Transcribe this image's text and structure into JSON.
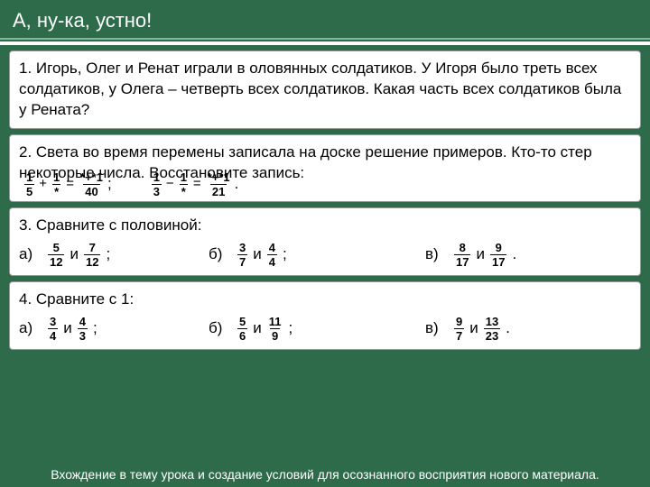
{
  "colors": {
    "background": "#2d6b4a",
    "card_bg": "#ffffff",
    "text": "#000000",
    "header_text": "#ffffff",
    "rule_light": "#7fb89a"
  },
  "header": "А, ну-ка, устно!",
  "task1": {
    "text": "1. Игорь, Олег и Ренат играли в оловянных солдатиков. У Игоря было треть всех солдатиков, у Олега – четверть всех солдатиков. Какая часть всех солдатиков была у Рената?"
  },
  "task2": {
    "text": "2. Света во время перемены записала на доске решение примеров. Кто-то стер некоторые числа. Восстановите запись:",
    "eq1": {
      "f1": {
        "n": "1",
        "d": "5"
      },
      "op1": "+",
      "f2": {
        "n": "1",
        "d": "*"
      },
      "op2": "=",
      "f3": {
        "n": "*+*1",
        "d": "40"
      },
      "tail": ";"
    },
    "eq2": {
      "f1": {
        "n": "1",
        "d": "3"
      },
      "op1": "−",
      "f2": {
        "n": "1",
        "d": "*"
      },
      "op2": "=",
      "f3": {
        "n": "*+*1",
        "d": "21"
      },
      "tail": "."
    }
  },
  "task3": {
    "text": "3. Сравните с половиной:",
    "a": {
      "label": "а)",
      "f1": {
        "n": "5",
        "d": "12"
      },
      "mid": "и",
      "f2": {
        "n": "7",
        "d": "12"
      },
      "tail": ";"
    },
    "b": {
      "label": "б)",
      "f1": {
        "n": "3",
        "d": "7"
      },
      "mid": "и",
      "f2": {
        "n": "4",
        "d": "4"
      },
      "tail": ";"
    },
    "c": {
      "label": "в)",
      "f1": {
        "n": "8",
        "d": "17"
      },
      "mid": "и",
      "f2": {
        "n": "9",
        "d": "17"
      },
      "tail": "."
    }
  },
  "task4": {
    "text": "4. Сравните с 1:",
    "a": {
      "label": "а)",
      "f1": {
        "n": "3",
        "d": "4"
      },
      "mid": "и",
      "f2": {
        "n": "4",
        "d": "3"
      },
      "tail": ";"
    },
    "b": {
      "label": "б)",
      "f1": {
        "n": "5",
        "d": "6"
      },
      "mid": "и",
      "f2": {
        "n": "11",
        "d": "9"
      },
      "tail": ";"
    },
    "c": {
      "label": "в)",
      "f1": {
        "n": "9",
        "d": "7"
      },
      "mid": "и",
      "f2": {
        "n": "13",
        "d": "23"
      },
      "tail": "."
    }
  },
  "footer": "Вхождение в тему урока и создание условий для осознанного восприятия нового материала."
}
